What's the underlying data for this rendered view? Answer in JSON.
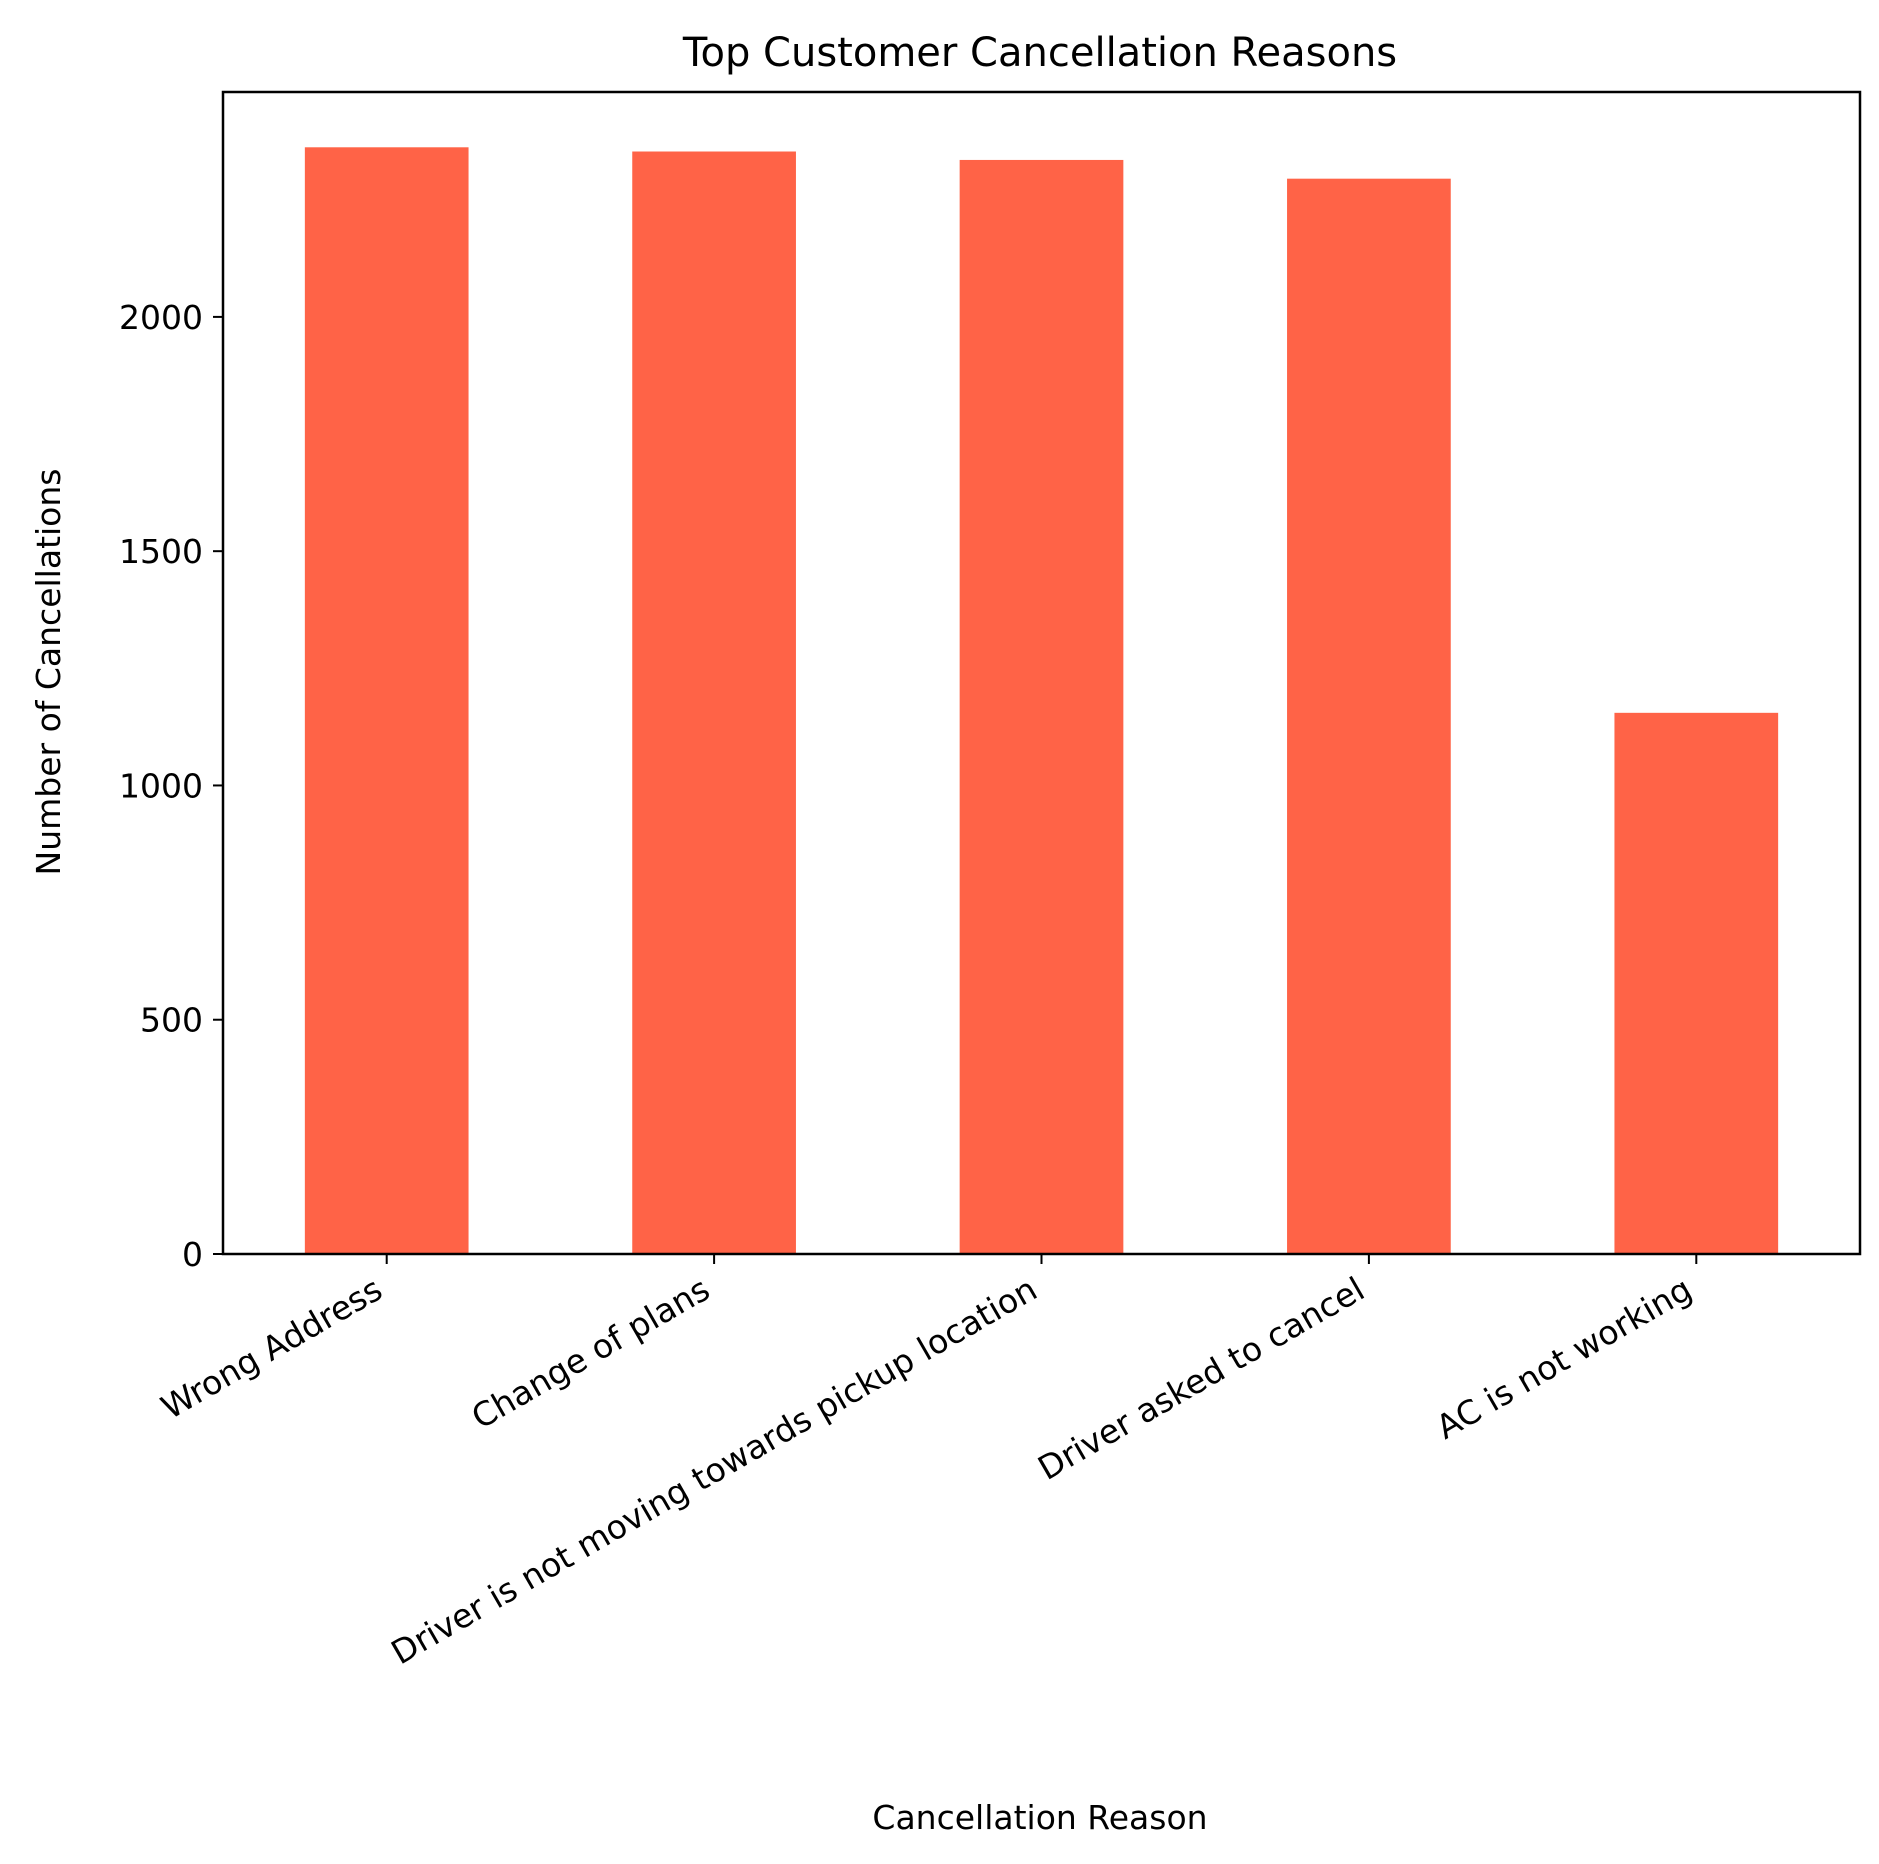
{
  "chart_data": {
    "type": "bar",
    "title": "Top Customer Cancellation Reasons",
    "xlabel": "Cancellation Reason",
    "ylabel": "Number of Cancellations",
    "categories": [
      "Wrong Address",
      "Change of plans",
      "Driver is not moving towards pickup location",
      "Driver asked to cancel",
      "AC is not working"
    ],
    "values": [
      2362,
      2353,
      2335,
      2295,
      1155
    ],
    "ylim": [
      0,
      2480
    ],
    "yticks": [
      0,
      500,
      1000,
      1500,
      2000
    ],
    "grid": false,
    "legend": "none",
    "bar_color": "#ff6347"
  }
}
